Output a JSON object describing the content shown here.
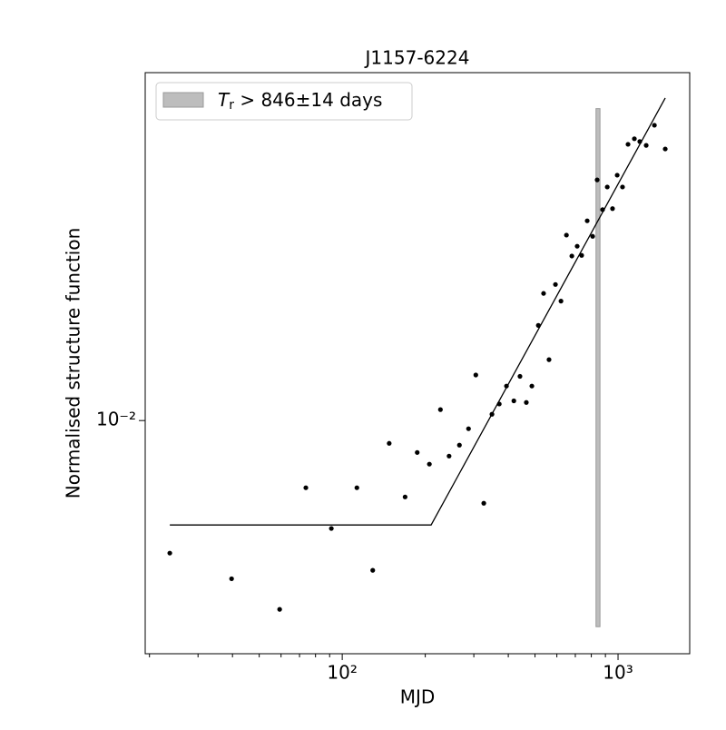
{
  "chart_data": {
    "type": "scatter",
    "title": "J1157-6224",
    "xlabel": "MJD",
    "ylabel": "Normalised structure function",
    "xlog": true,
    "ylog": true,
    "xlim": [
      19.3,
      1819
    ],
    "ylim": [
      0.00261,
      0.0742
    ],
    "xticks": [
      {
        "value": 100,
        "label": "10²"
      },
      {
        "value": 1000,
        "label": "10³"
      }
    ],
    "xminorticks": [
      20,
      30,
      40,
      50,
      60,
      70,
      80,
      90,
      200,
      300,
      400,
      500,
      600,
      700,
      800,
      900
    ],
    "yticks": [
      {
        "value": 0.01,
        "label": "10⁻²"
      }
    ],
    "color": "#000000",
    "x": [
      23.7,
      39.7,
      59.3,
      73.8,
      91.3,
      113,
      129,
      148,
      169,
      187,
      207,
      227,
      244,
      266,
      287,
      305,
      326,
      349,
      371,
      394,
      419,
      441,
      465,
      487,
      514,
      537,
      562,
      593,
      621,
      650,
      680,
      711,
      738,
      773,
      809,
      840,
      879,
      914,
      955,
      993,
      1038,
      1087,
      1146,
      1199,
      1265,
      1355,
      1483
    ],
    "y": [
      0.00466,
      0.00402,
      0.00337,
      0.00679,
      0.00537,
      0.00679,
      0.00422,
      0.00877,
      0.00644,
      0.00832,
      0.00778,
      0.01065,
      0.00815,
      0.00868,
      0.00954,
      0.013,
      0.00621,
      0.01037,
      0.011,
      0.0122,
      0.0112,
      0.0129,
      0.0111,
      0.0122,
      0.0173,
      0.0208,
      0.0142,
      0.0219,
      0.0199,
      0.0291,
      0.0258,
      0.0273,
      0.0259,
      0.0316,
      0.0289,
      0.04,
      0.0337,
      0.0384,
      0.0339,
      0.0411,
      0.0384,
      0.0491,
      0.0507,
      0.0499,
      0.0488,
      0.0548,
      0.0478
    ],
    "fit": {
      "color": "#000000",
      "x": [
        23.7,
        210,
        1483
      ],
      "y": [
        0.00548,
        0.00548,
        0.0641
      ]
    },
    "span": {
      "color": "#bdbdbd",
      "symbol": "T",
      "subscript": "r",
      "text": " > 846±14 days",
      "xmin": 832,
      "xmax": 860,
      "ymin": 0.00305,
      "ymax": 0.0603
    },
    "legend": "upper left"
  }
}
